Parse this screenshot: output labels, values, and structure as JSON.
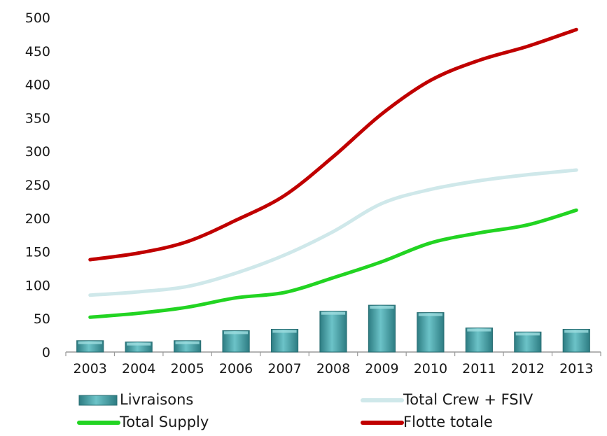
{
  "chart_data": {
    "type": "bar",
    "categories": [
      "2003",
      "2004",
      "2005",
      "2006",
      "2007",
      "2008",
      "2009",
      "2010",
      "2011",
      "2012",
      "2013"
    ],
    "ylim": [
      0,
      500
    ],
    "yticks": [
      "0",
      "50",
      "100",
      "150",
      "200",
      "250",
      "300",
      "350",
      "400",
      "450",
      "500"
    ],
    "grid": false,
    "legend_position": "bottom",
    "bar_series": {
      "name": "Livraisons",
      "color": "#3f9aa0",
      "values": [
        17,
        15,
        17,
        32,
        34,
        61,
        70,
        59,
        36,
        30,
        34
      ]
    },
    "line_series": [
      {
        "name": "Total Crew + FSIV",
        "color": "#cfe8ea",
        "values": [
          85,
          90,
          98,
          118,
          145,
          180,
          222,
          243,
          256,
          265,
          272
        ]
      },
      {
        "name": "Total Supply",
        "color": "#22d422",
        "values": [
          52,
          58,
          67,
          81,
          89,
          111,
          135,
          163,
          178,
          190,
          212
        ]
      },
      {
        "name": "Flotte totale",
        "color": "#c00000",
        "values": [
          138,
          148,
          165,
          197,
          234,
          292,
          356,
          406,
          436,
          457,
          482
        ]
      }
    ]
  }
}
